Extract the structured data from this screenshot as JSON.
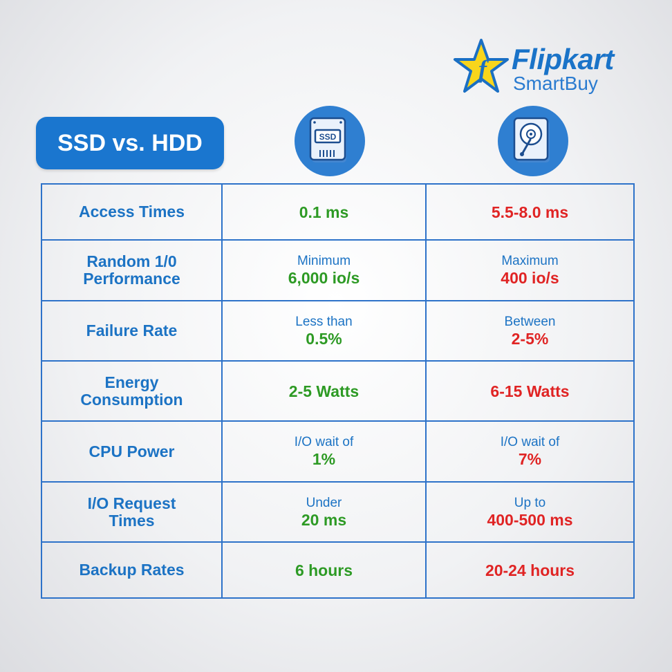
{
  "logo": {
    "brand": "Flipkart",
    "sub": "SmartBuy",
    "icon": "flipkart-star-icon",
    "colors": {
      "star": "#f8d51c",
      "text": "#1a73c8"
    }
  },
  "title": "SSD vs. HDD",
  "columns": {
    "ssd": {
      "icon": "ssd-drive-icon",
      "icon_label": "SSD"
    },
    "hdd": {
      "icon": "hard-disk-icon"
    }
  },
  "colors": {
    "ssd_value": "#2d9a24",
    "hdd_value": "#e02424",
    "label": "#1c73c4",
    "accent": "#1a76cf"
  },
  "rows": [
    {
      "label": "Access Times",
      "ssd": {
        "prefix": "",
        "value": "0.1 ms"
      },
      "hdd": {
        "prefix": "",
        "value": "5.5-8.0 ms"
      }
    },
    {
      "label_lines": [
        "Random 1/0",
        "Performance"
      ],
      "ssd": {
        "prefix": "Minimum",
        "value": "6,000 io/s"
      },
      "hdd": {
        "prefix": "Maximum",
        "value": "400 io/s"
      }
    },
    {
      "label": "Failure Rate",
      "ssd": {
        "prefix": "Less than",
        "value": "0.5%"
      },
      "hdd": {
        "prefix": "Between",
        "value": "2-5%"
      }
    },
    {
      "label_lines": [
        "Energy",
        "Consumption"
      ],
      "ssd": {
        "prefix": "",
        "value": "2-5 Watts"
      },
      "hdd": {
        "prefix": "",
        "value": "6-15 Watts"
      }
    },
    {
      "label": "CPU Power",
      "ssd": {
        "prefix": "I/O wait of",
        "value": "1%"
      },
      "hdd": {
        "prefix": "I/O wait of",
        "value": "7%"
      }
    },
    {
      "label_lines": [
        "I/O Request",
        "Times"
      ],
      "ssd": {
        "prefix": "Under",
        "value": "20 ms"
      },
      "hdd": {
        "prefix": "Up to",
        "value": "400-500 ms"
      }
    },
    {
      "label": "Backup Rates",
      "ssd": {
        "prefix": "",
        "value": "6 hours"
      },
      "hdd": {
        "prefix": "",
        "value": "20-24 hours"
      }
    }
  ]
}
